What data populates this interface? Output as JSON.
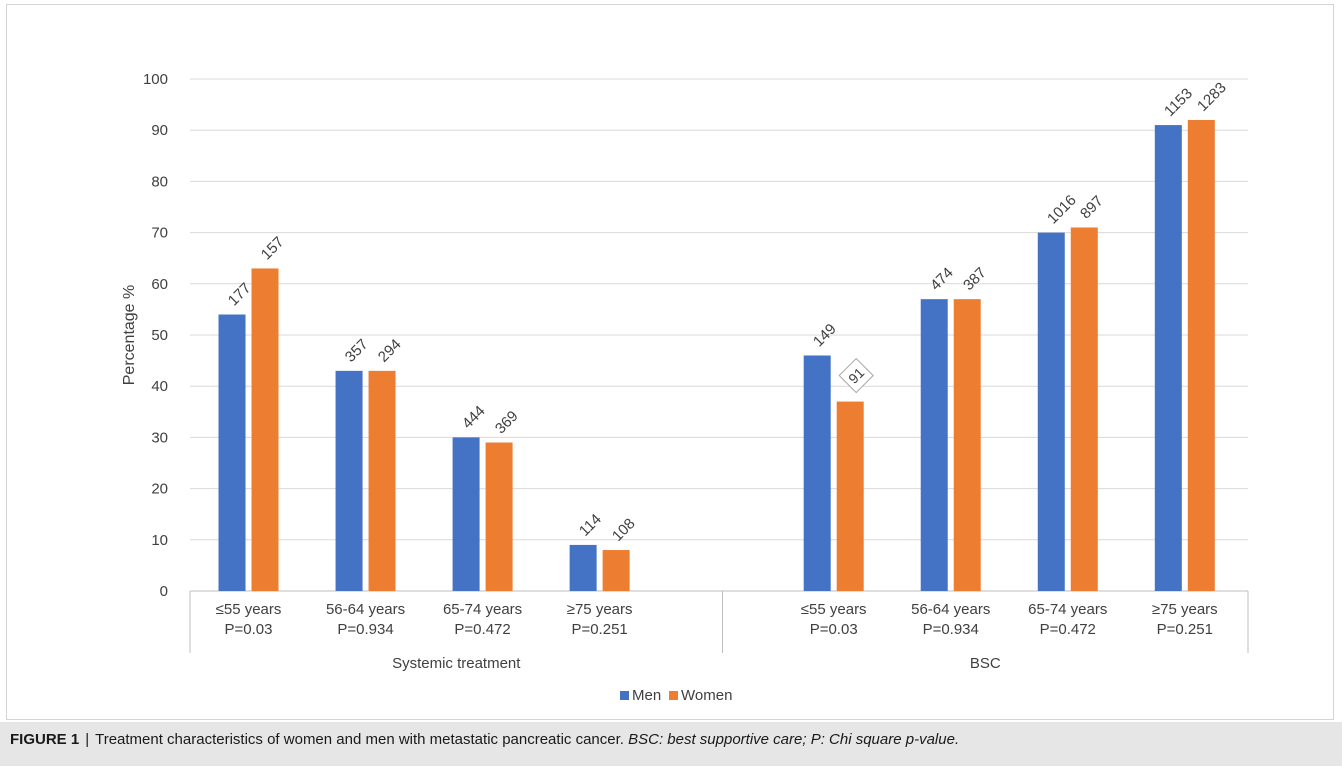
{
  "chart_data": {
    "type": "bar",
    "ylabel": "Percentage %",
    "ylim": [
      0,
      100
    ],
    "yticks": [
      0,
      10,
      20,
      30,
      40,
      50,
      60,
      70,
      80,
      90,
      100
    ],
    "grid": true,
    "legend_position": "bottom-center",
    "groups": [
      {
        "label": "Systemic treatment",
        "categories": [
          {
            "label": "≤55 years",
            "p": "P=0.03"
          },
          {
            "label": "56-64 years",
            "p": "P=0.934"
          },
          {
            "label": "65-74 years",
            "p": "P=0.472"
          },
          {
            "label": "≥75 years",
            "p": "P=0.251"
          }
        ]
      },
      {
        "label": "BSC",
        "categories": [
          {
            "label": "≤55 years",
            "p": "P=0.03"
          },
          {
            "label": "56-64 years",
            "p": "P=0.934"
          },
          {
            "label": "65-74 years",
            "p": "P=0.472"
          },
          {
            "label": "≥75 years",
            "p": "P=0.251"
          }
        ]
      }
    ],
    "series": [
      {
        "name": "Men",
        "color": "#4472C4",
        "values": [
          54,
          43,
          30,
          9,
          46,
          57,
          70,
          91
        ],
        "labels": [
          "177",
          "357",
          "444",
          "114",
          "149",
          "474",
          "1016",
          "1153"
        ]
      },
      {
        "name": "Women",
        "color": "#ED7D31",
        "values": [
          63,
          43,
          29,
          8,
          37,
          57,
          71,
          92
        ],
        "labels": [
          "157",
          "294",
          "369",
          "108",
          "91",
          "387",
          "897",
          "1283"
        ]
      }
    ]
  },
  "caption": {
    "figure": "FIGURE 1",
    "separator": "|",
    "text": "Treatment characteristics of women and men with metastatic pancreatic cancer.",
    "note": "BSC: best supportive care; P: Chi square p-value."
  }
}
